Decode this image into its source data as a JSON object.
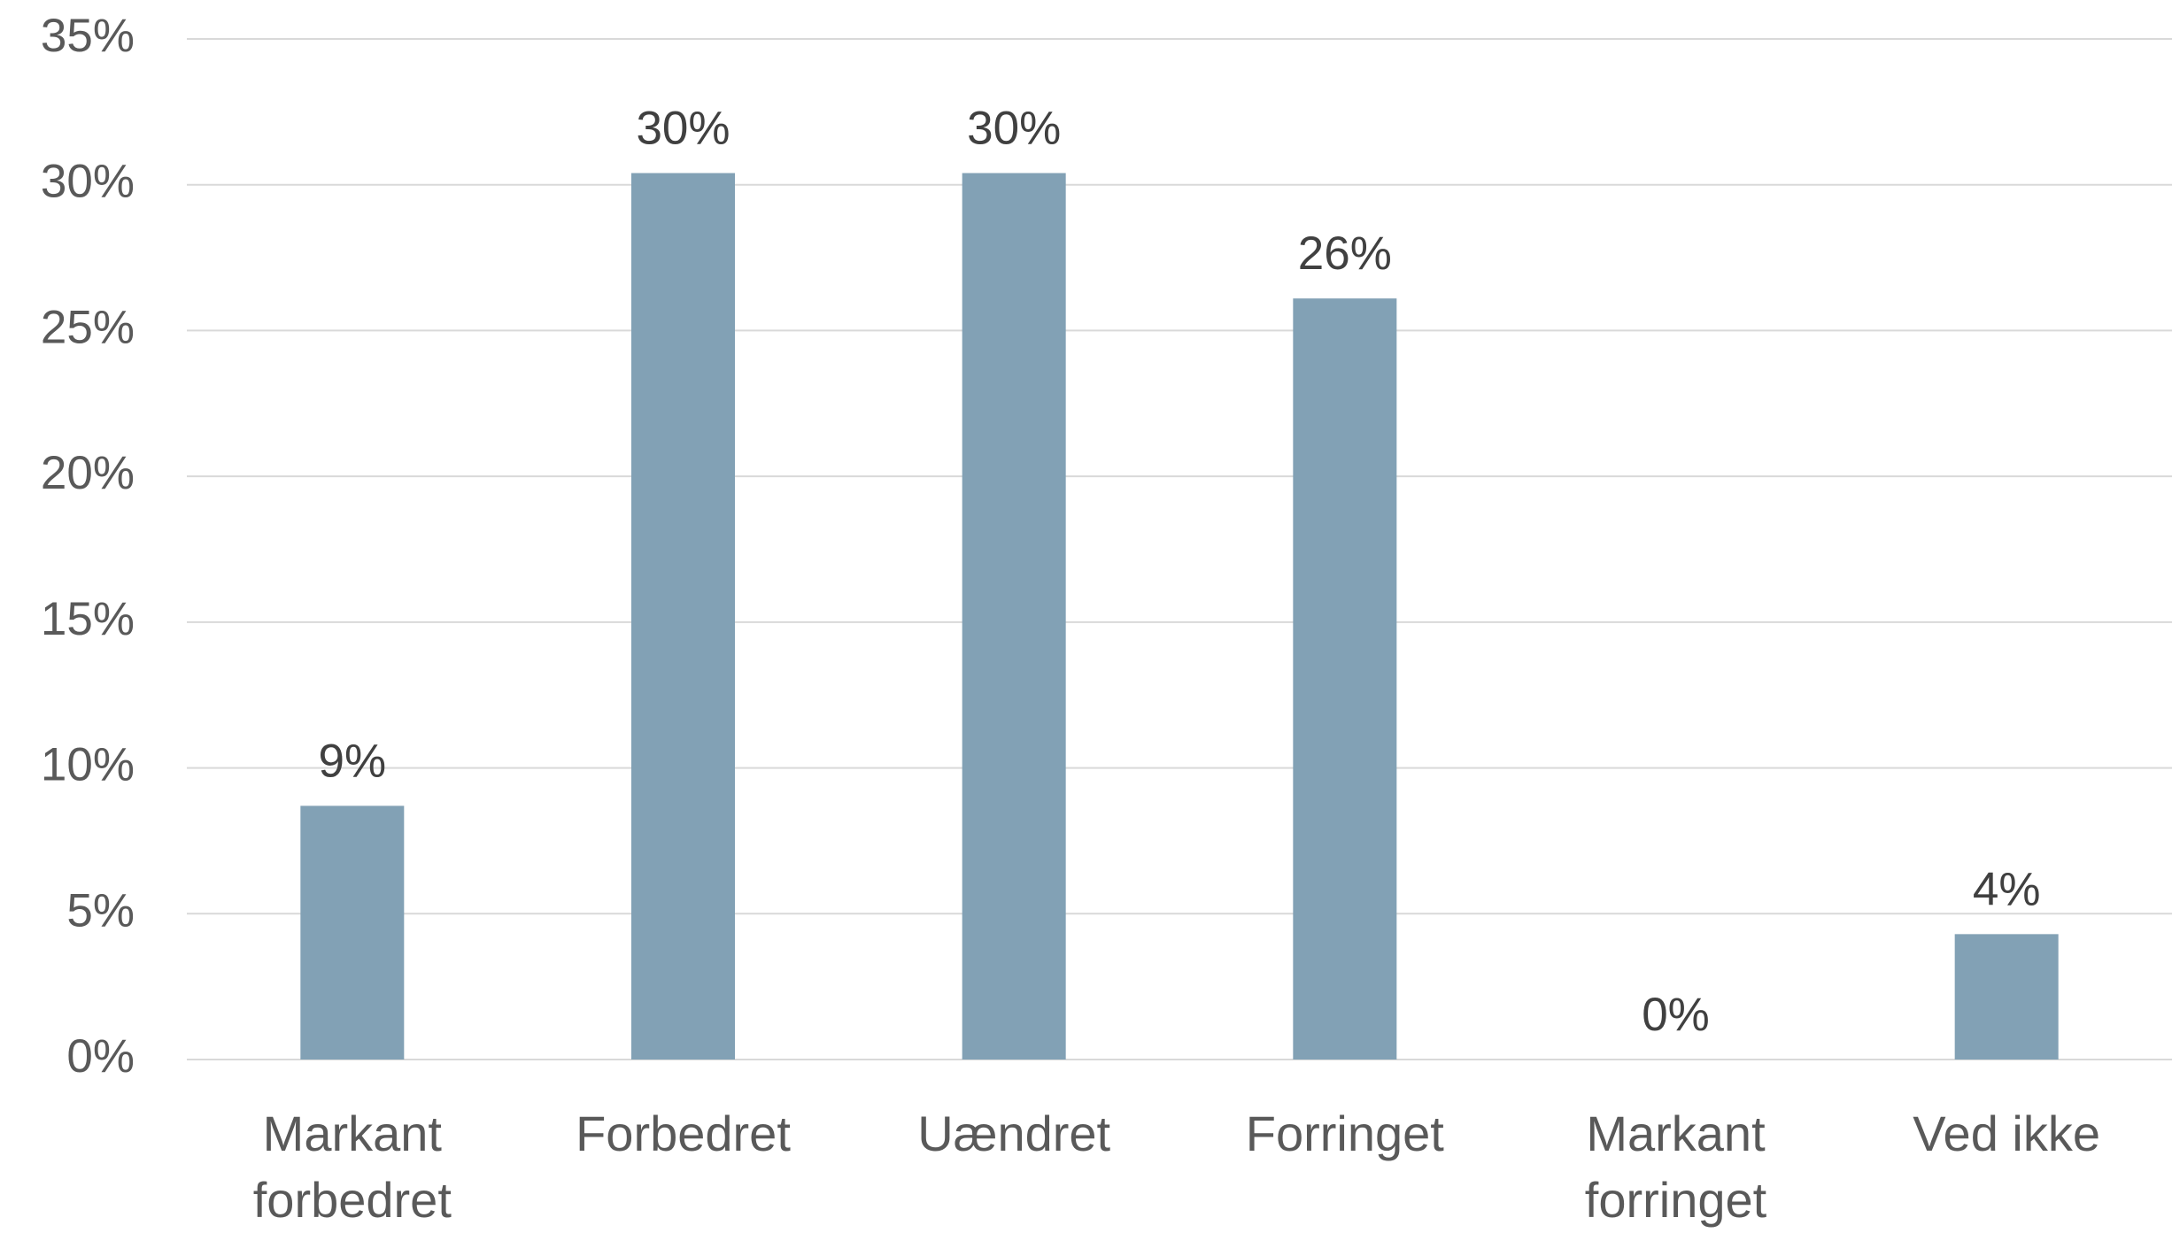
{
  "chart_data": {
    "type": "bar",
    "categories": [
      "Markant forbedret",
      "Forbedret",
      "Uændret",
      "Forringet",
      "Markant forringet",
      "Ved ikke"
    ],
    "values": [
      8.7,
      30.4,
      30.4,
      26.1,
      0,
      4.3
    ],
    "value_labels": [
      "9%",
      "30%",
      "30%",
      "26%",
      "0%",
      "4%"
    ],
    "color": "#82a1b5",
    "ylim": [
      0,
      35
    ],
    "yticks": [
      {
        "value": 0,
        "label": "0%"
      },
      {
        "value": 5,
        "label": "5%"
      },
      {
        "value": 10,
        "label": "10%"
      },
      {
        "value": 15,
        "label": "15%"
      },
      {
        "value": 20,
        "label": "20%"
      },
      {
        "value": 25,
        "label": "25%"
      },
      {
        "value": 30,
        "label": "30%"
      },
      {
        "value": 35,
        "label": "35%"
      }
    ],
    "grid": true
  }
}
